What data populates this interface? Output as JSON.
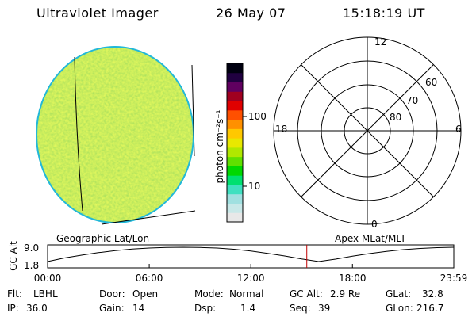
{
  "header": {
    "instrument": "Ultraviolet Imager",
    "date": "26 May 07",
    "time": "15:18:19 UT"
  },
  "colorbar": {
    "unit_label": "photon cm⁻²s⁻¹",
    "tick_100": "100",
    "tick_10": "10",
    "colors": [
      "#e8e8e8",
      "#c8e8e8",
      "#a0e0e0",
      "#40e0c0",
      "#00e070",
      "#00d800",
      "#60e000",
      "#b0e800",
      "#e8e800",
      "#ffc800",
      "#ff9000",
      "#ff5000",
      "#e00000",
      "#a00020",
      "#600060",
      "#200040",
      "#000010"
    ]
  },
  "left_panel": {
    "label": "Geographic Lat/Lon",
    "disk_color": "#9fe04a",
    "edge_color": "#22b8d8"
  },
  "polar_plot": {
    "label": "Apex MLat/MLT",
    "mlt_top": "12",
    "mlt_bottom": "0",
    "mlt_left": "18",
    "mlt_right": "6",
    "lat_60": "60",
    "lat_70": "70",
    "lat_80": "80"
  },
  "altitude_plot": {
    "ylabel": "GC Alt",
    "y_tick_high": "9.0",
    "y_tick_low": "1.8",
    "x_ticks": [
      "00:00",
      "06:00",
      "12:00",
      "18:00",
      "23:59"
    ],
    "curve_hours": [
      0,
      1,
      2,
      3,
      4,
      5,
      6,
      7,
      8,
      9,
      10,
      11,
      12,
      13,
      14,
      15,
      16,
      17,
      18,
      19,
      20,
      21,
      22,
      23,
      23.98
    ],
    "curve_alt": [
      1.8,
      3.6,
      5.0,
      6.3,
      7.3,
      8.1,
      8.6,
      8.9,
      9.0,
      8.9,
      8.6,
      8.0,
      7.1,
      5.9,
      4.6,
      3.1,
      1.8,
      3.0,
      4.5,
      5.8,
      6.9,
      7.8,
      8.4,
      8.8,
      9.0
    ],
    "current_hour": 15.305,
    "marker_color": "#c00000"
  },
  "info": {
    "flt_label": "Flt:",
    "flt_value": "LBHL",
    "ip_label": "IP:",
    "ip_value": "36.0",
    "door_label": "Door:",
    "door_value": "Open",
    "gain_label": "Gain:",
    "gain_value": "14",
    "mode_label": "Mode:",
    "mode_value": "Normal",
    "dsp_label": "Dsp:",
    "dsp_value": "1.4",
    "gcalt_label": "GC Alt:",
    "gcalt_value": "2.9 Re",
    "seq_label": "Seq:",
    "seq_value": "39",
    "glat_label": "GLat:",
    "glat_value": "32.8",
    "glon_label": "GLon:",
    "glon_value": "216.7"
  }
}
